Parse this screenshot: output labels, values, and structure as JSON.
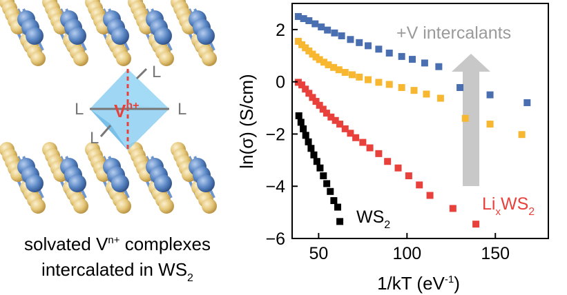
{
  "left_panel": {
    "center_ion": "V",
    "center_ion_sup": "n+",
    "ligand_label": "L",
    "caption_line1_pre": "solvated V",
    "caption_line1_sup": "n+",
    "caption_line1_post": " complexes",
    "caption_line2_pre": "intercalated in WS",
    "caption_line2_sub": "2"
  },
  "colors": {
    "blue": "#4a6fb0",
    "orange": "#f7b731",
    "red": "#e8413c",
    "black": "#000000",
    "arrow": "#c8c8c8",
    "intercalant_text": "#9a9a9a",
    "octahedron": "#7ec8f0",
    "w_atom": "#5a87c5",
    "s_atom": "#e5c77a",
    "bond_dash": "#e8413c"
  },
  "chart_data": {
    "type": "scatter",
    "xlabel": "1/kT (eV",
    "xlabel_sup": "-1",
    "xlabel_post": ")",
    "ylabel": "ln(σ) (S/cm)",
    "xlim": [
      35,
      180
    ],
    "ylim": [
      -6,
      3
    ],
    "xticks": [
      50,
      100,
      150
    ],
    "yticks": [
      2,
      0,
      -2,
      -4,
      -6
    ],
    "grid": false,
    "series": [
      {
        "color": "blue",
        "x": [
          38.5,
          41.5,
          44.5,
          48,
          51.5,
          55,
          59,
          63,
          68,
          73,
          78,
          84,
          90,
          97,
          103,
          110,
          118,
          130,
          147,
          168
        ],
        "y": [
          2.5,
          2.42,
          2.34,
          2.22,
          2.1,
          1.98,
          1.87,
          1.76,
          1.62,
          1.5,
          1.38,
          1.25,
          1.1,
          0.97,
          0.86,
          0.72,
          0.58,
          -0.22,
          -0.5,
          -0.8
        ]
      },
      {
        "color": "orange",
        "x": [
          38.5,
          40.5,
          42.5,
          44.5,
          46.5,
          48.5,
          50.5,
          53,
          55.5,
          58.5,
          61.5,
          65,
          69,
          73,
          78,
          84,
          90,
          97,
          104,
          111,
          119,
          133,
          147,
          165
        ],
        "y": [
          1.55,
          1.42,
          1.3,
          1.18,
          1.06,
          0.95,
          0.85,
          0.75,
          0.65,
          0.55,
          0.46,
          0.36,
          0.27,
          0.18,
          0.08,
          -0.02,
          -0.1,
          -0.22,
          -0.33,
          -0.47,
          -0.63,
          -1.4,
          -1.62,
          -2.02
        ]
      },
      {
        "color": "red",
        "x": [
          38.5,
          40.5,
          42.5,
          44.5,
          46.5,
          48.5,
          50.5,
          52.5,
          54.5,
          57,
          59.5,
          62,
          65,
          68,
          71,
          75,
          79,
          84,
          89,
          95,
          101,
          107,
          113,
          126,
          139
        ],
        "y": [
          -0.02,
          -0.12,
          -0.28,
          -0.44,
          -0.6,
          -0.75,
          -0.9,
          -1.05,
          -1.2,
          -1.35,
          -1.48,
          -1.62,
          -1.8,
          -1.97,
          -2.14,
          -2.32,
          -2.53,
          -2.75,
          -3.05,
          -3.3,
          -3.6,
          -3.95,
          -4.35,
          -4.85,
          -5.45
        ]
      },
      {
        "color": "black",
        "x": [
          38.8,
          40,
          41.3,
          42.7,
          44.2,
          45.7,
          47.3,
          49,
          50.8,
          52.7,
          54.6,
          56.6,
          58.6,
          60.8
        ],
        "y": [
          -1.3,
          -1.55,
          -1.8,
          -2.05,
          -2.3,
          -2.55,
          -2.8,
          -3.05,
          -3.3,
          -3.6,
          -3.9,
          -4.2,
          -4.55,
          -4.8
        ]
      }
    ],
    "tail_points": [
      {
        "color": "black",
        "x": 62,
        "y": -5.35
      }
    ],
    "annotations": {
      "intercalants": "+V intercalants",
      "ws2_label": "WS",
      "ws2_sub": "2",
      "li_label_pre": "Li",
      "li_sub": "x",
      "li_label_post": "WS",
      "li_sub2": "2"
    }
  }
}
